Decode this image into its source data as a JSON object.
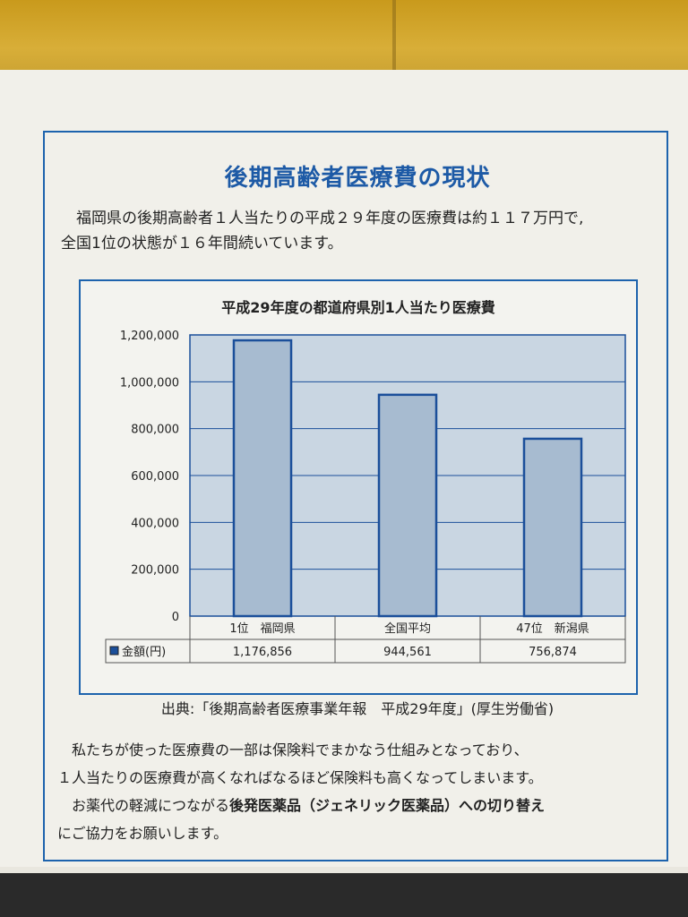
{
  "page": {
    "title": "後期高齢者医療費の現状",
    "intro_line1": "福岡県の後期高齢者１人当たりの平成２９年度の医療費は約１１７万円で,",
    "intro_line2": "全国1位の状態が１６年間続いています。",
    "source": "出典:「後期高齢者医療事業年報　平成29年度」(厚生労働省)",
    "para1_line1": "私たちが使った医療費の一部は保険料でまかなう仕組みとなっており、",
    "para1_line2": "１人当たりの医療費が高くなればなるほど保険料も高くなってしまいます。",
    "para2_pre": "お薬代の軽減につながる",
    "para2_bold": "後発医薬品（ジェネリック医薬品）への切り替え",
    "para2_post": "にご協力をお願いします。"
  },
  "chart_data": {
    "type": "bar",
    "title": "平成29年度の都道府県別1人当たり医療費",
    "categories": [
      "1位　福岡県",
      "全国平均",
      "47位　新潟県"
    ],
    "series": [
      {
        "name": "金額(円)",
        "values": [
          1176856,
          944561,
          756874
        ]
      }
    ],
    "value_labels": [
      "1,176,856",
      "944,561",
      "756,874"
    ],
    "ylim": [
      0,
      1200000
    ],
    "yticks": [
      0,
      200000,
      400000,
      600000,
      800000,
      1000000,
      1200000
    ],
    "ytick_labels": [
      "0",
      "200,000",
      "400,000",
      "600,000",
      "800,000",
      "1,000,000",
      "1,200,000"
    ],
    "grid": true,
    "table_row_label": "金額(円)",
    "colors": {
      "bar": "#a7bbd0",
      "bar_edge": "#1b4f9a",
      "plot_bg": "#c9d6e2",
      "grid": "#1b4f9a"
    }
  }
}
